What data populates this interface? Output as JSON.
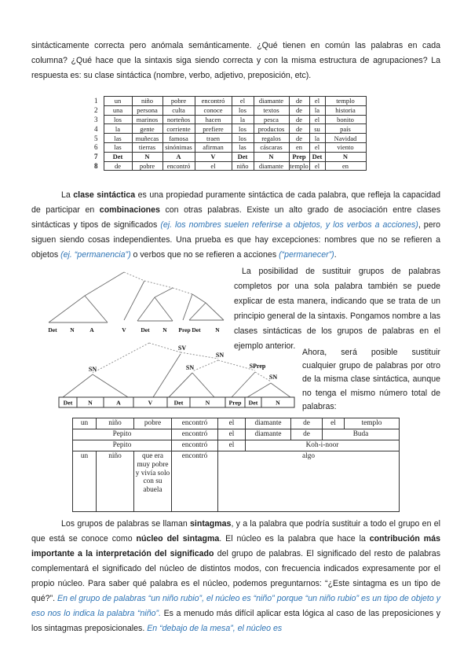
{
  "colors": {
    "accent_blue": "#2e74b5",
    "text": "#1c1c1c"
  },
  "p1": [
    {
      "t": "sintácticamente correcta pero anómala semánticamente. ¿Qué tienen en común las palabras en cada columna? ¿Qué hace que la sintaxis siga siendo correcta y con la misma estructura de agrupaciones? La respuesta es: su clase sintáctica (nombre, verbo, adjetivo, preposición, etc)."
    }
  ],
  "table1": {
    "numbers": [
      "1",
      "2",
      "3",
      "4",
      "5",
      "6",
      "7",
      "8"
    ],
    "rows": [
      [
        "un",
        "niño",
        "pobre",
        "encontró",
        "el",
        "diamante",
        "de",
        "el",
        "templo"
      ],
      [
        "una",
        "persona",
        "culta",
        "conoce",
        "los",
        "textos",
        "de",
        "la",
        "historia"
      ],
      [
        "los",
        "marinos",
        "norteños",
        "hacen",
        "la",
        "pesca",
        "de",
        "el",
        "bonito"
      ],
      [
        "la",
        "gente",
        "corriente",
        "prefiere",
        "los",
        "productos",
        "de",
        "su",
        "país"
      ],
      [
        "las",
        "muñecas",
        "famosa",
        "traen",
        "los",
        "regalos",
        "de",
        "la",
        "Navidad"
      ],
      [
        "las",
        "tierras",
        "sinónimas",
        "afirman",
        "las",
        "cáscaras",
        "en",
        "el",
        "viento"
      ],
      [
        "Det",
        "N",
        "A",
        "V",
        "Det",
        "N",
        "Prep",
        "Det",
        "N"
      ],
      [
        "de",
        "pobre",
        "encontró",
        "el",
        "niño",
        "diamante",
        "templo",
        "el",
        "en"
      ]
    ],
    "bold_row_index": 6
  },
  "p2": [
    {
      "t": "La "
    },
    {
      "t": "clase sintáctica",
      "b": true
    },
    {
      "t": " es una propiedad puramente sintáctica de cada palabra, que refleja la capacidad de participar en "
    },
    {
      "t": "combinaciones",
      "b": true
    },
    {
      "t": " con otras palabras. Existe un alto grado de asociación entre clases sintácticas y tipos de significados "
    },
    {
      "t": "(ej. los nombres suelen referirse a objetos, y los verbos a acciones)",
      "i": true
    },
    {
      "t": ", pero siguen siendo cosas independientes. Una prueba es que hay excepciones: nombres que no se refieren a objetos "
    },
    {
      "t": "(ej. “permanencia”)",
      "i": true
    },
    {
      "t": " o verbos que no se refieren a acciones "
    },
    {
      "t": "(“permanecer”)",
      "i": true
    },
    {
      "t": "."
    }
  ],
  "side_p1": [
    {
      "t": "La posibilidad de sustituir grupos de palabras completos por una sola palabra también se puede explicar de esta manera, indicando que se trata de un principio general de la sintaxis. Pongamos nombre a las clases sintácticas de los grupos de palabras en el ejemplo anterior."
    }
  ],
  "side_p2": [
    {
      "t": "Ahora, será posible sustituir cualquier grupo de palabras por otro de la misma clase sintáctica, aunque no tenga el mismo número total de palabras:"
    }
  ],
  "tree1": {
    "leaves": [
      "Det",
      "N",
      "A",
      "V",
      "Det",
      "N",
      "Prep",
      "Det",
      "N"
    ]
  },
  "tree2": {
    "labels": [
      "SN",
      "SV",
      "SN",
      "SN",
      "SPrep",
      "SN"
    ],
    "cells": [
      "Det",
      "N",
      "A",
      "V",
      "Det",
      "N",
      "Prep",
      "Det",
      "N"
    ]
  },
  "table2": {
    "rows": [
      [
        {
          "t": "un"
        },
        {
          "t": "niño"
        },
        {
          "t": "pobre"
        },
        {
          "t": "encontró"
        },
        {
          "t": "el"
        },
        {
          "t": "diamante"
        },
        {
          "t": "de"
        },
        {
          "t": "el"
        },
        {
          "t": "templo"
        }
      ],
      [
        {
          "t": "Pepito",
          "span": 3
        },
        {
          "t": "encontró"
        },
        {
          "t": "el"
        },
        {
          "t": "diamante"
        },
        {
          "t": "de"
        },
        {
          "t": "Buda",
          "span": 2
        }
      ],
      [
        {
          "t": "Pepito",
          "span": 3
        },
        {
          "t": "encontró"
        },
        {
          "t": "el"
        },
        {
          "t": "Koh-i-noor",
          "span": 4
        }
      ],
      [
        {
          "t": "un"
        },
        {
          "t": "niño"
        },
        {
          "t": "que era muy pobre y vivía solo con su abuela"
        },
        {
          "t": "encontró"
        },
        {
          "t": "algo",
          "span": 5
        }
      ]
    ],
    "tall_row_index": 3
  },
  "p3": [
    {
      "t": "Los grupos de palabras se llaman "
    },
    {
      "t": "sintagmas",
      "b": true
    },
    {
      "t": ", y a la palabra que podría sustituir a todo el grupo en el que está se conoce como "
    },
    {
      "t": "núcleo del sintagma",
      "b": true
    },
    {
      "t": ". El núcleo es la palabra que hace la "
    },
    {
      "t": "contribución más importante a la interpretación del significado",
      "b": true
    },
    {
      "t": " del grupo de palabras. El significado del resto de palabras complementará el significado del núcleo de distintos modos, con frecuencia indicados expresamente por el propio núcleo. Para saber qué palabra es el núcleo, podemos preguntarnos: “¿Este sintagma es un tipo de qué?”. "
    },
    {
      "t": "En el grupo de palabras “un niño rubio”, el núcleo es “niño” porque “un niño rubio” es un tipo de objeto y eso nos lo indica la palabra “niño”.",
      "i": true
    },
    {
      "t": " Es a menudo más difícil aplicar esta lógica al caso de las preposiciones y los sintagmas preposicionales. "
    },
    {
      "t": "En “debajo de la mesa”, el núcleo es",
      "i": true
    }
  ]
}
